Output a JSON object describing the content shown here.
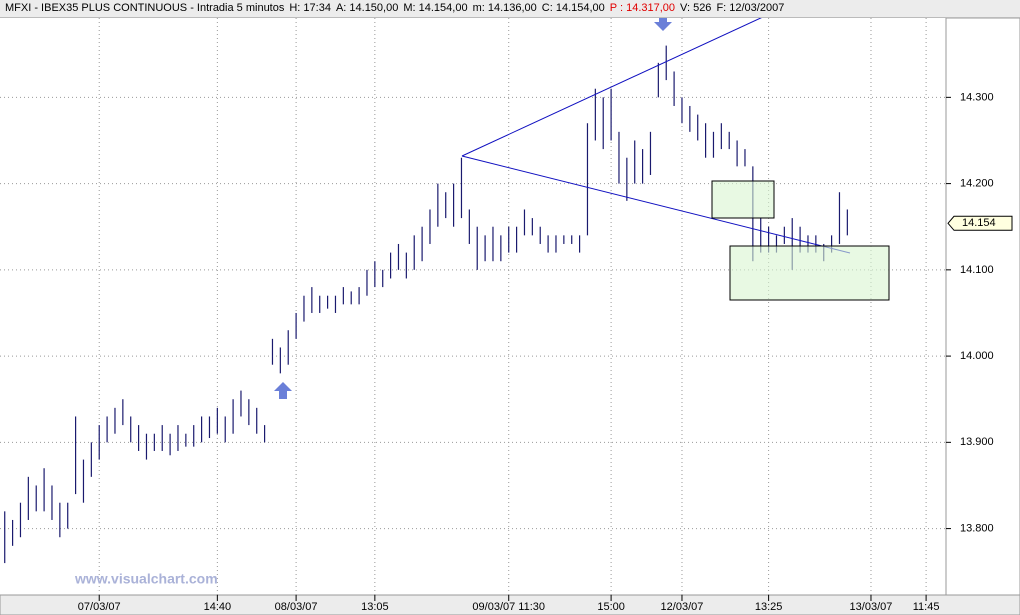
{
  "chart_data": {
    "type": "hilo",
    "title": "MFXI - IBEX35 PLUS CONTINUOUS - Intradia 5 minutos",
    "info": [
      "H: 17:34",
      "A: 14.150,00",
      "M: 14.154,00",
      "m: 14.136,00",
      "C: 14.154,00",
      "P : 14.317,00",
      "V: 526",
      "F: 12/03/2007"
    ],
    "info_highlight": "P : 14.317,00",
    "watermark": "www.visualchart.com",
    "color": "#1a1a6e",
    "high": [
      13820,
      13810,
      13830,
      13860,
      13850,
      13870,
      13850,
      13830,
      13830,
      13930,
      13880,
      13900,
      13920,
      13930,
      13940,
      13950,
      13930,
      13920,
      13910,
      13910,
      13920,
      13910,
      13920,
      13910,
      13920,
      13930,
      13930,
      13940,
      13930,
      13950,
      13960,
      13950,
      13940,
      13920,
      14020,
      14010,
      14030,
      14050,
      14070,
      14080,
      14070,
      14070,
      14070,
      14080,
      14075,
      14080,
      14100,
      14110,
      14100,
      14120,
      14130,
      14120,
      14140,
      14150,
      14170,
      14200,
      14190,
      14200,
      14230,
      14170,
      14150,
      14140,
      14150,
      14140,
      14150,
      14150,
      14170,
      14160,
      14150,
      14140,
      14140,
      14140,
      14140,
      14140,
      14270,
      14310,
      14300,
      14310,
      14260,
      14230,
      14250,
      14240,
      14260,
      14340,
      14360,
      14330,
      14300,
      14290,
      14280,
      14270,
      14260,
      14270,
      14260,
      14250,
      14240,
      14220,
      14160,
      14150,
      14140,
      14150,
      14160,
      14150,
      14140,
      14140,
      14130,
      14140,
      14190,
      14170
    ],
    "low": [
      13760,
      13780,
      13790,
      13810,
      13820,
      13820,
      13810,
      13790,
      13800,
      13840,
      13830,
      13860,
      13880,
      13900,
      13910,
      13920,
      13900,
      13890,
      13880,
      13890,
      13890,
      13885,
      13890,
      13895,
      13895,
      13900,
      13905,
      13910,
      13900,
      13910,
      13930,
      13920,
      13910,
      13900,
      13990,
      13980,
      13990,
      14020,
      14040,
      14050,
      14050,
      14055,
      14050,
      14060,
      14060,
      14060,
      14070,
      14080,
      14080,
      14090,
      14100,
      14090,
      14100,
      14110,
      14130,
      14150,
      14160,
      14150,
      14160,
      14130,
      14100,
      14110,
      14110,
      14110,
      14120,
      14120,
      14140,
      14140,
      14130,
      14120,
      14120,
      14130,
      14130,
      14120,
      14140,
      14250,
      14240,
      14250,
      14200,
      14180,
      14200,
      14200,
      14210,
      14300,
      14320,
      14290,
      14270,
      14260,
      14250,
      14230,
      14230,
      14240,
      14240,
      14220,
      14220,
      14110,
      14120,
      14120,
      14120,
      14130,
      14100,
      14120,
      14120,
      14120,
      14110,
      14120,
      14130,
      14140
    ],
    "xlim": [
      -0.6,
      119.4
    ],
    "xticks": [
      {
        "value": 12,
        "label": "07/03/07"
      },
      {
        "value": 27,
        "label": "14:40"
      },
      {
        "value": 37,
        "label": "08/03/07"
      },
      {
        "value": 47,
        "label": "13:05"
      },
      {
        "value": 64,
        "label": "09/03/07 11:30"
      },
      {
        "value": 77,
        "label": "15:00"
      },
      {
        "value": 86,
        "label": "12/03/07"
      },
      {
        "value": 97,
        "label": "13:25"
      },
      {
        "value": 110,
        "label": "13/03/07"
      },
      {
        "value": 117,
        "label": "11:45"
      }
    ],
    "ylim": [
      13723,
      14392
    ],
    "yticks": [
      {
        "value": 13800,
        "label": "13.800"
      },
      {
        "value": 13900,
        "label": "13.900"
      },
      {
        "value": 14000,
        "label": "14.000"
      },
      {
        "value": 14100,
        "label": "14.100"
      },
      {
        "value": 14200,
        "label": "14.200"
      },
      {
        "value": 14300,
        "label": "14.300"
      }
    ],
    "last": {
      "value": 14154,
      "label": "14.154"
    },
    "grid": true
  }
}
